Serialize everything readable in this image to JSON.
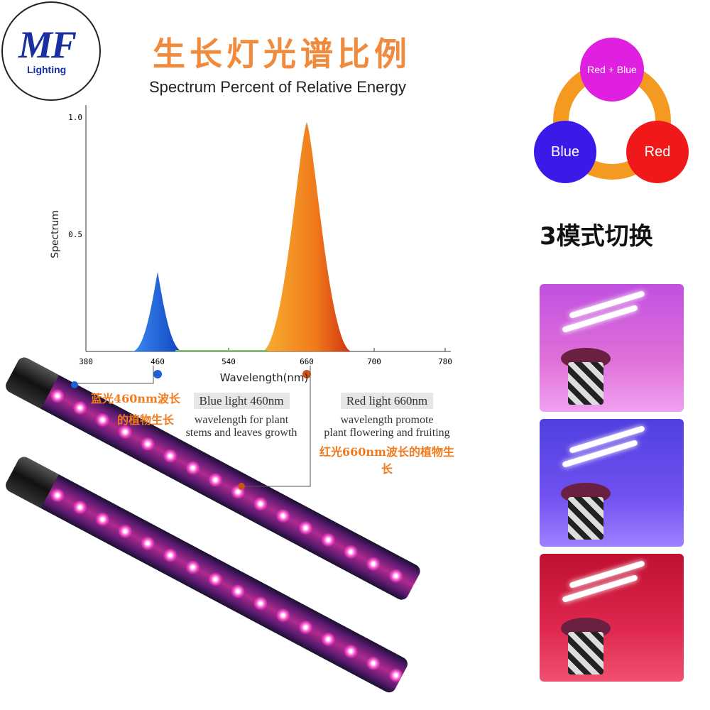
{
  "logo": {
    "text": "MF",
    "subtext": "Lighting"
  },
  "title_cn": "生长灯光谱比例",
  "title_en": "Spectrum  Percent of Relative Energy",
  "chart_data": {
    "type": "area",
    "title": "Spectrum  Percent of Relative Energy",
    "xlabel": "Wavelength(nm)",
    "ylabel": "Spectrum",
    "xticks": [
      "380",
      "460",
      "540",
      "660",
      "700",
      "780"
    ],
    "yticks": [
      "0.5",
      "1.0"
    ],
    "ylim": [
      0,
      1.0
    ],
    "grid": false,
    "series": [
      {
        "peak_nm": 460,
        "peak_value": 0.34,
        "color": "#1f6fe0"
      },
      {
        "peak_nm": 660,
        "peak_value": 0.98,
        "color": "#f07a1c"
      }
    ],
    "markers": [
      {
        "nm": 460,
        "color": "#1f5fd8"
      },
      {
        "nm": 660,
        "color": "#d0501c"
      }
    ]
  },
  "annotations": {
    "blue_cn_1": "蓝光460nm波长",
    "blue_cn_2": "的植物生长",
    "blue_title": "Blue light 460nm",
    "blue_desc_1": "wavelength for plant",
    "blue_desc_2": "stems  and  leaves growth",
    "red_title": "Red light 660nm",
    "red_desc_1": "wavelength promote",
    "red_desc_2": "plant flowering and fruiting",
    "red_cn": "红光660nm波长的植物生长"
  },
  "modes": {
    "items": [
      {
        "label": "Red + Blue",
        "color": "#e020e0"
      },
      {
        "label": "Blue",
        "color": "#3a1ae8"
      },
      {
        "label": "Red",
        "color": "#f01818"
      }
    ],
    "arrow_color": "#f59a20",
    "caption": "3模式切换"
  }
}
